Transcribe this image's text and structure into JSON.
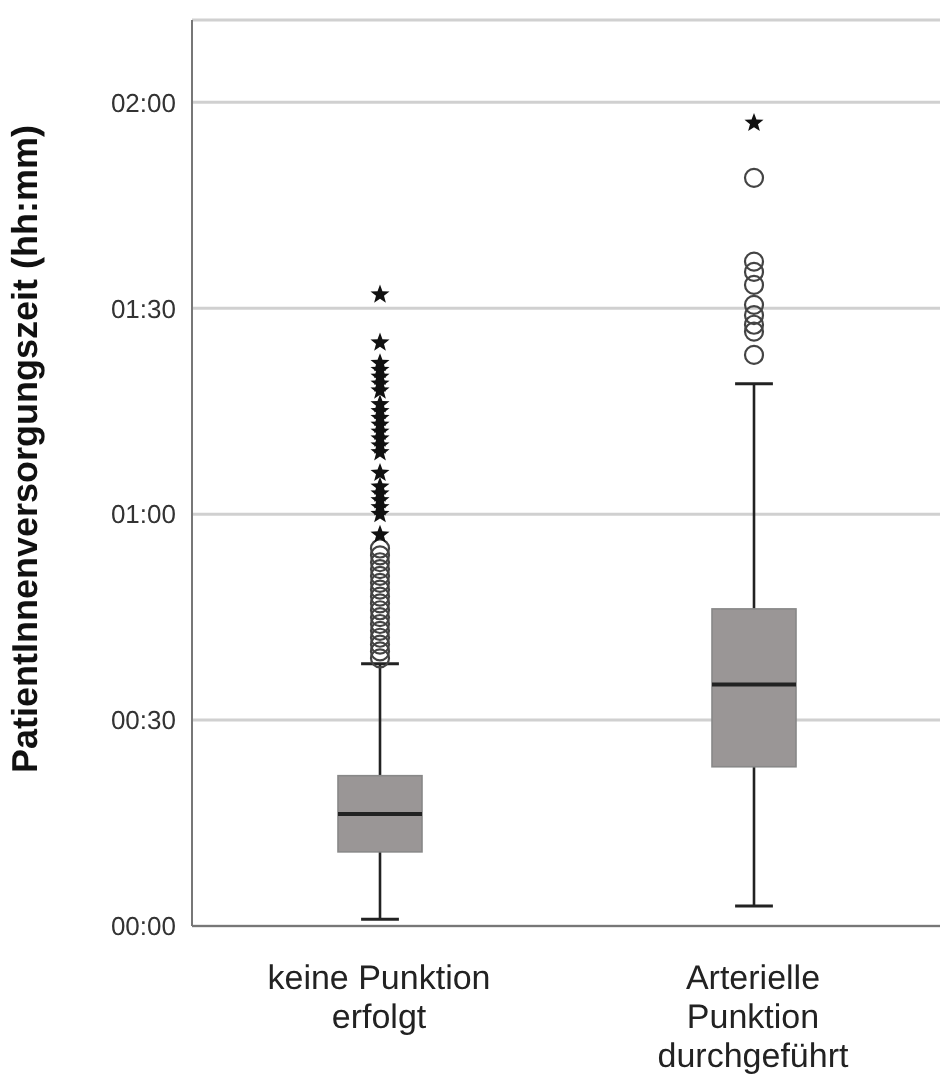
{
  "chart_data": {
    "type": "box",
    "ylabel": "PatientInnenversorgungszeit (hh:mm)",
    "categories": [
      "keine Punktion erfolgt",
      "Arterielle Punktion durchgeführt"
    ],
    "boxes": [
      {
        "low": 1,
        "q1": 10.8,
        "median": 16.3,
        "q3": 21.9,
        "high": 38.2,
        "outliers": [
          39,
          40,
          41,
          42,
          43,
          44,
          45,
          46,
          47,
          48,
          49,
          50,
          51,
          52,
          53,
          54,
          55,
          57,
          60,
          61,
          62,
          63,
          64,
          66,
          69,
          70,
          71,
          72,
          73,
          74,
          75,
          76,
          78,
          79,
          80,
          81,
          82,
          85,
          92
        ]
      },
      {
        "low": 2.9,
        "q1": 23.2,
        "median": 35.2,
        "q3": 46.2,
        "high": 79,
        "outliers": [
          83.2,
          86.6,
          87.6,
          89,
          90.5,
          93.4,
          95.3,
          96.8,
          109,
          117
        ]
      }
    ],
    "color": "#9a9696",
    "ylim": [
      0,
      132
    ],
    "yticks": [
      {
        "value": 0,
        "label": "00:00"
      },
      {
        "value": 30,
        "label": "00:30"
      },
      {
        "value": 60,
        "label": "01:00"
      },
      {
        "value": 90,
        "label": "01:30"
      },
      {
        "value": 120,
        "label": "02:00"
      }
    ],
    "grid": "y"
  }
}
